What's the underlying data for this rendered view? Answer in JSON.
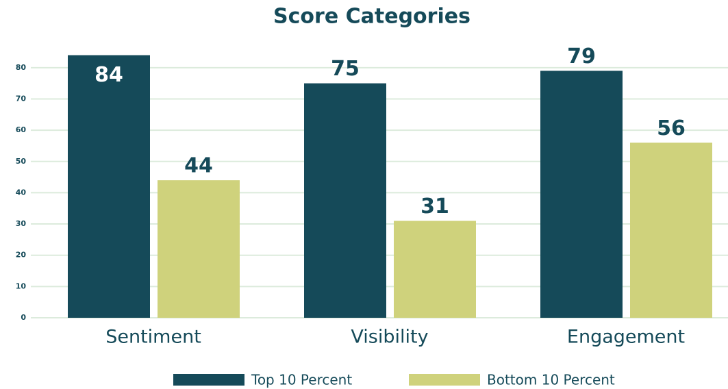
{
  "chart_data": {
    "type": "bar",
    "title": "Score Categories",
    "categories": [
      "Sentiment",
      "Visibility",
      "Engagement"
    ],
    "series": [
      {
        "name": "Top 10 Percent",
        "color": "#154a59",
        "values": [
          84,
          75,
          79
        ]
      },
      {
        "name": "Bottom 10 Percent",
        "color": "#cfd27c",
        "values": [
          44,
          31,
          56
        ]
      }
    ],
    "ylim": [
      0,
      85
    ],
    "yticks": [
      0,
      10,
      20,
      30,
      40,
      50,
      60,
      70,
      80
    ],
    "grid": true
  }
}
